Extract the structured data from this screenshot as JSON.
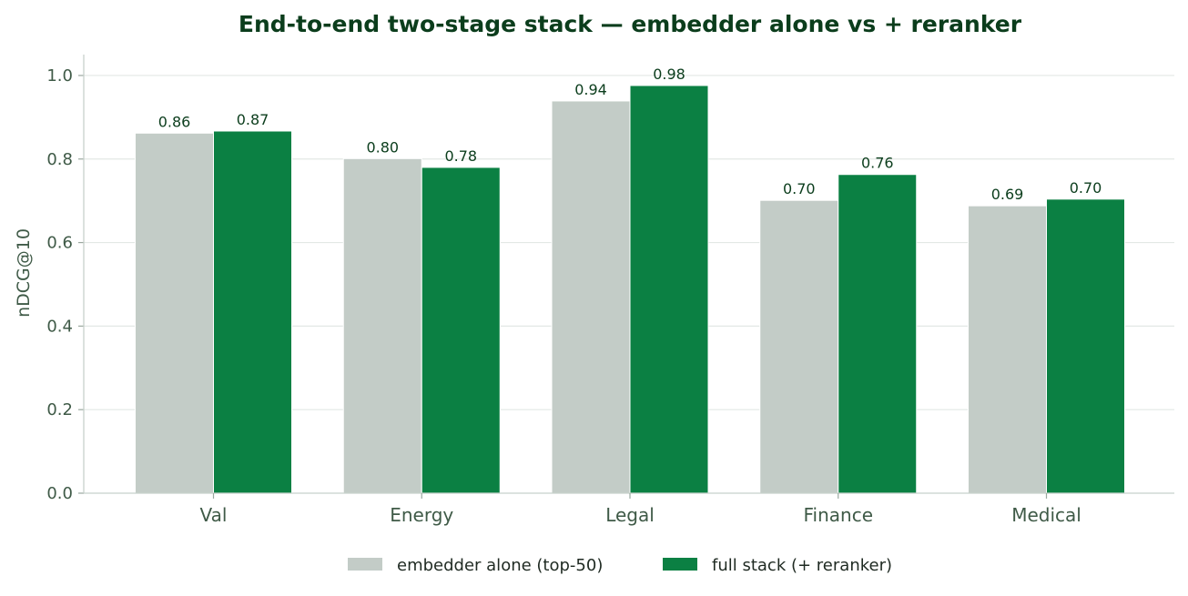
{
  "chart_data": {
    "type": "bar",
    "title": "End-to-end two-stage stack — embedder alone vs + reranker",
    "xlabel": "",
    "ylabel": "nDCG@10",
    "ylim": [
      0,
      1.05
    ],
    "yticks": [
      0.0,
      0.2,
      0.4,
      0.6,
      0.8,
      1.0
    ],
    "ytick_labels": [
      "0.0",
      "0.2",
      "0.4",
      "0.6",
      "0.8",
      "1.0"
    ],
    "grid": "horizontal",
    "legend_position": "bottom-center",
    "categories": [
      "Val",
      "Energy",
      "Legal",
      "Finance",
      "Medical"
    ],
    "series": [
      {
        "name": "embedder alone (top-50)",
        "color": "#c3ccc7",
        "values": [
          0.862,
          0.801,
          0.939,
          0.701,
          0.688
        ],
        "labels": [
          "0.86",
          "0.80",
          "0.94",
          "0.70",
          "0.69"
        ]
      },
      {
        "name": "full stack (+ reranker)",
        "color": "#0b8043",
        "values": [
          0.867,
          0.78,
          0.976,
          0.763,
          0.704
        ],
        "labels": [
          "0.87",
          "0.78",
          "0.98",
          "0.76",
          "0.70"
        ]
      }
    ]
  }
}
